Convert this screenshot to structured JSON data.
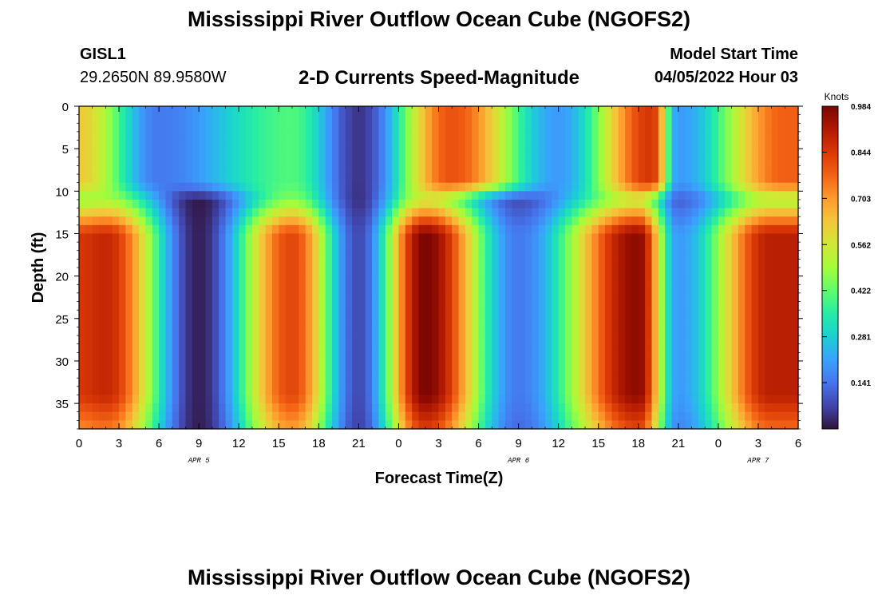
{
  "header": {
    "title": "Mississippi River Outflow Ocean Cube (NGOFS2)",
    "station": "GISL1",
    "coordinates": "29.2650N  89.9580W",
    "subtitle": "2-D Currents Speed-Magnitude",
    "model_start_label": "Model Start Time",
    "model_start_value": "04/05/2022 Hour 03"
  },
  "footer": {
    "title": "Mississippi River Outflow Ocean Cube (NGOFS2)"
  },
  "chart_data": {
    "type": "heatmap",
    "title": "2-D Currents Speed-Magnitude",
    "xlabel": "Forecast Time(Z)",
    "ylabel": "Depth (ft)",
    "x_tick_labels": [
      "0",
      "3",
      "6",
      "9",
      "12",
      "15",
      "18",
      "21",
      "0",
      "3",
      "6",
      "9",
      "12",
      "15",
      "18",
      "21",
      "0",
      "3",
      "6"
    ],
    "x_range_hours": [
      0,
      54
    ],
    "date_labels": [
      {
        "label": "APR 5",
        "hour": 9
      },
      {
        "label": "APR 6",
        "hour": 33
      },
      {
        "label": "APR 7",
        "hour": 51
      }
    ],
    "y_tick_labels": [
      "0",
      "5",
      "10",
      "15",
      "20",
      "25",
      "30",
      "35"
    ],
    "y_range_ft": [
      0,
      38
    ],
    "y_inverted": true,
    "colorbar": {
      "unit_label": "Knots",
      "tick_labels": [
        "0.984",
        "0.844",
        "0.703",
        "0.562",
        "0.422",
        "0.281",
        "0.141"
      ],
      "range": [
        0,
        0.984
      ]
    },
    "lower_band_depth_range_ft": [
      11,
      38
    ],
    "lower_band_peaks": [
      {
        "hour": 0,
        "value": 0.85
      },
      {
        "hour": 2,
        "value": 0.88
      },
      {
        "hour": 9,
        "value": 0.02
      },
      {
        "hour": 16,
        "value": 0.82
      },
      {
        "hour": 21,
        "value": 0.08
      },
      {
        "hour": 26,
        "value": 0.98
      },
      {
        "hour": 33,
        "value": 0.15
      },
      {
        "hour": 42,
        "value": 0.96
      },
      {
        "hour": 45,
        "value": 0.2
      },
      {
        "hour": 52,
        "value": 0.9
      }
    ],
    "upper_band_depth_range_ft": [
      0,
      9
    ],
    "upper_band_peaks": [
      {
        "hour": 0,
        "value": 0.62
      },
      {
        "hour": 6,
        "value": 0.15
      },
      {
        "hour": 16,
        "value": 0.4
      },
      {
        "hour": 21,
        "value": 0.05
      },
      {
        "hour": 28,
        "value": 0.8
      },
      {
        "hour": 36,
        "value": 0.2
      },
      {
        "hour": 43,
        "value": 0.85
      },
      {
        "hour": 45,
        "value": 0.2
      },
      {
        "hour": 53,
        "value": 0.78
      }
    ],
    "colormap": [
      "#30123b",
      "#4145ab",
      "#4675ed",
      "#39a2fc",
      "#1bcfd4",
      "#24eca6",
      "#61fc6c",
      "#a4fc3b",
      "#d1e834",
      "#f3c63a",
      "#fe9b2d",
      "#f36315",
      "#d93806",
      "#b11901",
      "#7a0403"
    ]
  }
}
